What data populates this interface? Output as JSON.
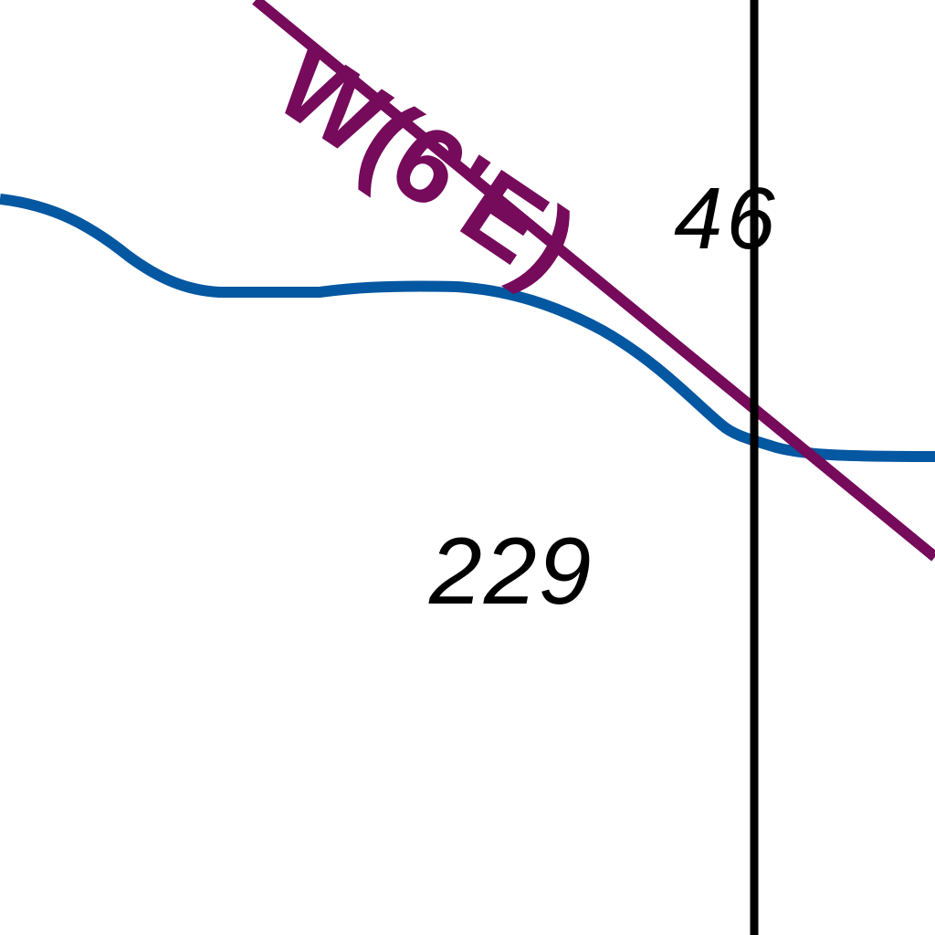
{
  "map": {
    "colors": {
      "background": "#ffffff",
      "road": "#760a5b",
      "stream": "#0457a1",
      "boundary": "#000000"
    },
    "road": {
      "label": "W(6'E)",
      "color": "#760a5b"
    },
    "stream": {
      "color": "#0457a1"
    },
    "boundary": {
      "color": "#000000"
    },
    "parcel_labels": [
      {
        "text": "229"
      },
      {
        "text": "46"
      }
    ]
  }
}
